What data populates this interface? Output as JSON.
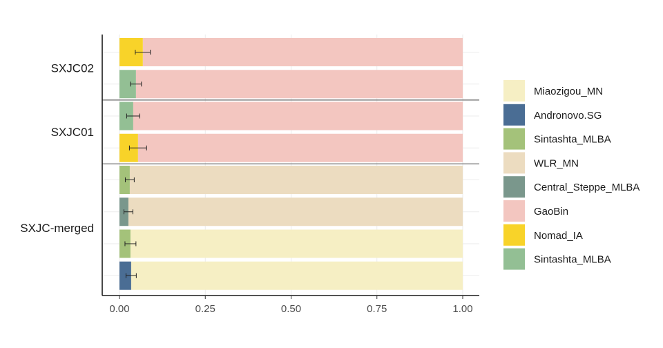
{
  "chart_data": {
    "type": "bar",
    "orientation": "horizontal",
    "stacked": true,
    "xlim": [
      0,
      1
    ],
    "xticks": [
      0,
      0.25,
      0.5,
      0.75,
      1
    ],
    "xtick_labels": [
      "0.00",
      "0.25",
      "0.50",
      "0.75",
      "1.00"
    ],
    "groups": [
      {
        "label": "SXJC02",
        "rows": 2
      },
      {
        "label": "SXJC01",
        "rows": 2
      },
      {
        "label": "SXJC-merged",
        "rows": 4
      }
    ],
    "rows": [
      {
        "group": "SXJC02",
        "minor": "Nomad_IA",
        "minor_value": 0.068,
        "error": 0.022,
        "major": "GaoBin"
      },
      {
        "group": "SXJC02",
        "minor": "Sintashta_MLBA (2)",
        "minor_value": 0.048,
        "error": 0.016,
        "major": "GaoBin"
      },
      {
        "group": "SXJC01",
        "minor": "Sintashta_MLBA (2)",
        "minor_value": 0.04,
        "error": 0.019,
        "major": "GaoBin"
      },
      {
        "group": "SXJC01",
        "minor": "Nomad_IA",
        "minor_value": 0.054,
        "error": 0.025,
        "major": "GaoBin"
      },
      {
        "group": "SXJC-merged",
        "minor": "Sintashta_MLBA",
        "minor_value": 0.03,
        "error": 0.013,
        "major": "WLR_MN"
      },
      {
        "group": "SXJC-merged",
        "minor": "Central_Steppe_MLBA",
        "minor_value": 0.026,
        "error": 0.013,
        "major": "WLR_MN"
      },
      {
        "group": "SXJC-merged",
        "minor": "Sintashta_MLBA",
        "minor_value": 0.032,
        "error": 0.016,
        "major": "Miaozigou_MN"
      },
      {
        "group": "SXJC-merged",
        "minor": "Andronovo.SG",
        "minor_value": 0.034,
        "error": 0.015,
        "major": "Miaozigou_MN"
      }
    ],
    "legend": {
      "position": "right",
      "items": [
        {
          "key": "Miaozigou_MN",
          "label": "Miaozigou_MN",
          "color": "#f6efc4"
        },
        {
          "key": "Andronovo.SG",
          "label": "Andronovo.SG",
          "color": "#4a6d94"
        },
        {
          "key": "Sintashta_MLBA",
          "label": "Sintashta_MLBA",
          "color": "#a4c27a"
        },
        {
          "key": "WLR_MN",
          "label": "WLR_MN",
          "color": "#ecdcc0"
        },
        {
          "key": "Central_Steppe_MLBA",
          "label": "Central_Steppe_MLBA",
          "color": "#7a978c"
        },
        {
          "key": "GaoBin",
          "label": "GaoBin",
          "color": "#f3c6c0"
        },
        {
          "key": "Nomad_IA",
          "label": "Nomad_IA",
          "color": "#f8d329"
        },
        {
          "key": "Sintashta_MLBA (2)",
          "label": "Sintashta_MLBA",
          "color": "#93bf94"
        }
      ]
    },
    "grid": true
  }
}
